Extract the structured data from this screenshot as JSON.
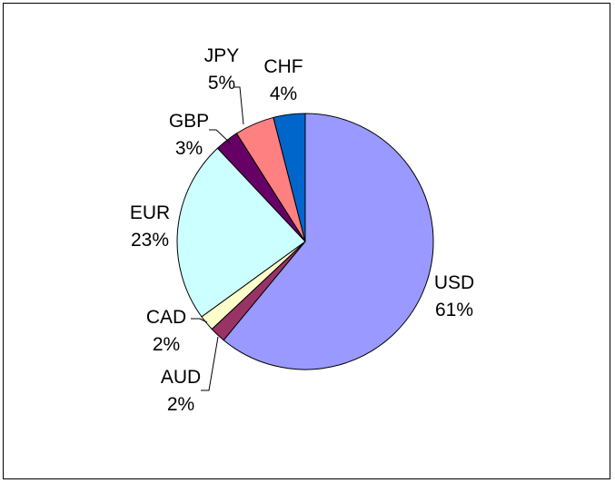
{
  "chart_data": {
    "type": "pie",
    "slices": [
      {
        "label": "USD",
        "value": 61,
        "value_label": "61%",
        "color": "#9999ff"
      },
      {
        "label": "AUD",
        "value": 2,
        "value_label": "2%",
        "color": "#993366"
      },
      {
        "label": "CAD",
        "value": 2,
        "value_label": "2%",
        "color": "#ffffcc"
      },
      {
        "label": "EUR",
        "value": 23,
        "value_label": "23%",
        "color": "#ccffff"
      },
      {
        "label": "GBP",
        "value": 3,
        "value_label": "3%",
        "color": "#660066"
      },
      {
        "label": "JPY",
        "value": 5,
        "value_label": "5%",
        "color": "#ff8080"
      },
      {
        "label": "CHF",
        "value": 4,
        "value_label": "4%",
        "color": "#0066cc"
      }
    ],
    "start_angle": "12 o'clock",
    "direction": "clockwise",
    "legend": "none"
  }
}
